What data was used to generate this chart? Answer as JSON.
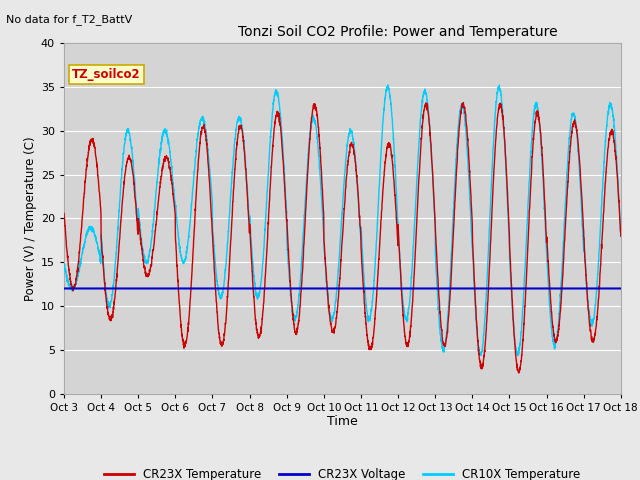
{
  "title": "Tonzi Soil CO2 Profile: Power and Temperature",
  "no_data_text": "No data for f_T2_BattV",
  "xlabel": "Time",
  "ylabel": "Power (V) / Temperature (C)",
  "ylim": [
    0,
    40
  ],
  "yticks": [
    0,
    5,
    10,
    15,
    20,
    25,
    30,
    35,
    40
  ],
  "xtick_labels": [
    "Oct 3",
    "Oct 4",
    "Oct 5",
    "Oct 6",
    "Oct 7",
    "Oct 8",
    "Oct 9",
    "Oct 10",
    "Oct 11",
    "Oct 12",
    "Oct 13",
    "Oct 14",
    "Oct 15",
    "Oct 16",
    "Oct 17",
    "Oct 18"
  ],
  "legend_box_label": "TZ_soilco2",
  "legend_box_color": "#ffffcc",
  "legend_box_border": "#ccaa00",
  "cr23x_temp_color": "#cc0000",
  "cr23x_volt_color": "#0000cc",
  "cr10x_temp_color": "#00ccff",
  "background_color": "#e8e8e8",
  "plot_bg_color": "#d4d4d4",
  "grid_color": "#ffffff",
  "voltage_value": 12.0,
  "cr23x_day_params": [
    {
      "max": 29.0,
      "min": 12.0,
      "phase": 0.25
    },
    {
      "max": 27.0,
      "min": 8.5,
      "phase": 0.25
    },
    {
      "max": 27.0,
      "min": 13.5,
      "phase": 0.25
    },
    {
      "max": 30.5,
      "min": 5.5,
      "phase": 0.25
    },
    {
      "max": 30.5,
      "min": 5.5,
      "phase": 0.25
    },
    {
      "max": 32.0,
      "min": 6.5,
      "phase": 0.25
    },
    {
      "max": 33.0,
      "min": 7.0,
      "phase": 0.25
    },
    {
      "max": 28.5,
      "min": 7.0,
      "phase": 0.25
    },
    {
      "max": 28.5,
      "min": 5.0,
      "phase": 0.25
    },
    {
      "max": 33.0,
      "min": 5.5,
      "phase": 0.25
    },
    {
      "max": 33.0,
      "min": 5.5,
      "phase": 0.25
    },
    {
      "max": 33.0,
      "min": 3.0,
      "phase": 0.25
    },
    {
      "max": 32.0,
      "min": 2.5,
      "phase": 0.25
    },
    {
      "max": 31.0,
      "min": 6.0,
      "phase": 0.25
    },
    {
      "max": 30.0,
      "min": 6.0,
      "phase": 0.25
    }
  ],
  "cr10x_day_params": [
    {
      "max": 19.0,
      "min": 12.0,
      "phase": 0.22
    },
    {
      "max": 30.0,
      "min": 10.0,
      "phase": 0.22
    },
    {
      "max": 30.0,
      "min": 15.0,
      "phase": 0.22
    },
    {
      "max": 31.5,
      "min": 15.0,
      "phase": 0.22
    },
    {
      "max": 31.5,
      "min": 11.0,
      "phase": 0.22
    },
    {
      "max": 34.5,
      "min": 11.0,
      "phase": 0.22
    },
    {
      "max": 31.5,
      "min": 8.5,
      "phase": 0.22
    },
    {
      "max": 30.0,
      "min": 8.5,
      "phase": 0.22
    },
    {
      "max": 35.0,
      "min": 8.5,
      "phase": 0.22
    },
    {
      "max": 34.5,
      "min": 8.5,
      "phase": 0.22
    },
    {
      "max": 33.0,
      "min": 5.0,
      "phase": 0.22
    },
    {
      "max": 35.0,
      "min": 4.5,
      "phase": 0.22
    },
    {
      "max": 33.0,
      "min": 4.5,
      "phase": 0.22
    },
    {
      "max": 32.0,
      "min": 5.5,
      "phase": 0.22
    },
    {
      "max": 33.0,
      "min": 8.0,
      "phase": 0.22
    }
  ]
}
